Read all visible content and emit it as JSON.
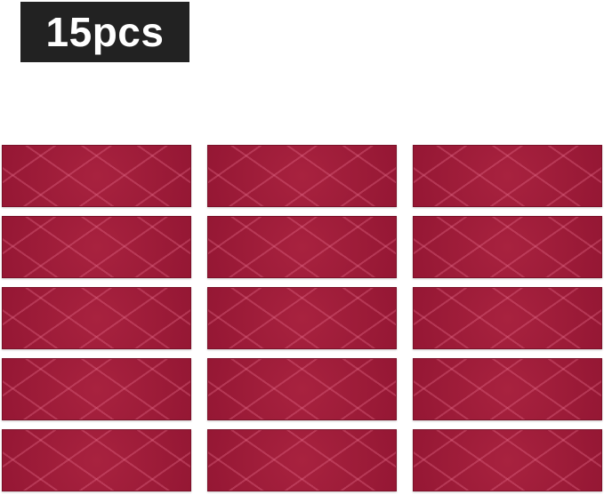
{
  "badge": {
    "label": "15pcs"
  },
  "product": {
    "count": 15,
    "columns": 3,
    "rows": 5,
    "color": "#9e1a38"
  }
}
